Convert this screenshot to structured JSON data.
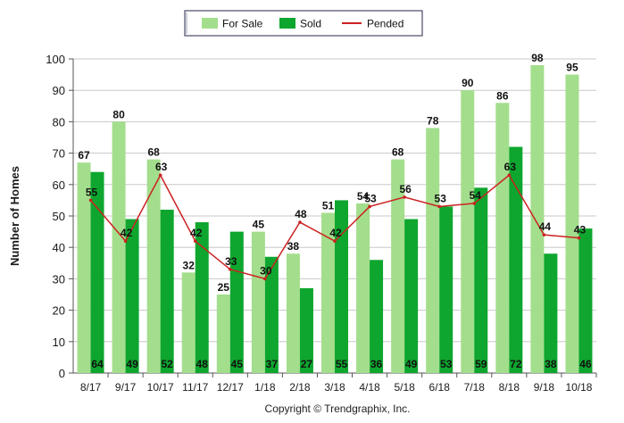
{
  "chart_data": {
    "type": "bar",
    "categories": [
      "8/17",
      "9/17",
      "10/17",
      "11/17",
      "12/17",
      "1/18",
      "2/18",
      "3/18",
      "4/18",
      "5/18",
      "6/18",
      "7/18",
      "8/18",
      "9/18",
      "10/18"
    ],
    "series": [
      {
        "name": "For Sale",
        "kind": "bar",
        "color": "#a3de8c",
        "values": [
          67,
          80,
          68,
          32,
          25,
          45,
          38,
          51,
          54,
          68,
          78,
          90,
          86,
          98,
          95
        ]
      },
      {
        "name": "Sold",
        "kind": "bar",
        "color": "#0ea62e",
        "values": [
          64,
          49,
          52,
          48,
          45,
          37,
          27,
          55,
          36,
          49,
          53,
          59,
          72,
          38,
          46
        ]
      },
      {
        "name": "Pended",
        "kind": "line",
        "color": "#cc2222",
        "values": [
          55,
          42,
          63,
          42,
          33,
          30,
          48,
          42,
          53,
          56,
          53,
          54,
          63,
          44,
          43
        ]
      }
    ],
    "ylabel": "Number of Homes",
    "xlabel": "",
    "ylim": [
      0,
      100
    ],
    "yticks": [
      0,
      10,
      20,
      30,
      40,
      50,
      60,
      70,
      80,
      90,
      100
    ],
    "grid": true,
    "legend": "top-center",
    "footer": "Copyright © Trendgraphix, Inc."
  }
}
